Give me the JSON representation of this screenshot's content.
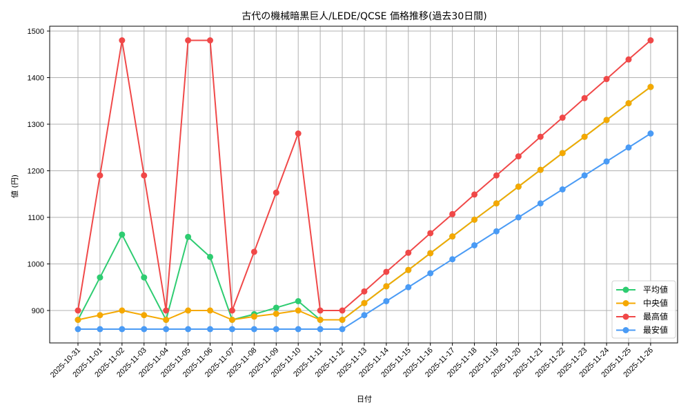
{
  "chart_data": {
    "type": "line",
    "title": "古代の機械暗黒巨人/LEDE/QCSE 価格推移(過去30日間)",
    "xlabel": "日付",
    "ylabel": "値 (円)",
    "ylim": [
      830,
      1510
    ],
    "yticks": [
      900,
      1000,
      1100,
      1200,
      1300,
      1400,
      1500
    ],
    "grid": true,
    "legend_position": "lower right",
    "x": [
      "2025-10-31",
      "2025-11-01",
      "2025-11-02",
      "2025-11-03",
      "2025-11-04",
      "2025-11-05",
      "2025-11-06",
      "2025-11-07",
      "2025-11-08",
      "2025-11-09",
      "2025-11-10",
      "2025-11-11",
      "2025-11-12",
      "2025-11-13",
      "2025-11-14",
      "2025-11-15",
      "2025-11-16",
      "2025-11-17",
      "2025-11-18",
      "2025-11-19",
      "2025-11-20",
      "2025-11-21",
      "2025-11-22",
      "2025-11-23",
      "2025-11-24",
      "2025-11-25",
      "2025-11-26"
    ],
    "series": [
      {
        "name": "平均値",
        "color": "#2ecc71",
        "values": [
          880,
          971,
          1063,
          971,
          880,
          1058,
          1015,
          880,
          892,
          906,
          920,
          880,
          880,
          916,
          952,
          987,
          1023,
          1059,
          1095,
          1130,
          1166,
          1202,
          1238,
          1273,
          1309,
          1345,
          1380
        ]
      },
      {
        "name": "中央値",
        "color": "#f5a800",
        "values": [
          880,
          890,
          900,
          890,
          880,
          900,
          900,
          880,
          887,
          893,
          900,
          880,
          880,
          916,
          952,
          987,
          1023,
          1059,
          1095,
          1130,
          1166,
          1202,
          1238,
          1273,
          1309,
          1345,
          1380
        ]
      },
      {
        "name": "最高値",
        "color": "#f04848",
        "values": [
          900,
          1190,
          1480,
          1190,
          900,
          1480,
          1480,
          900,
          1026,
          1153,
          1280,
          900,
          900,
          941,
          983,
          1024,
          1066,
          1107,
          1149,
          1190,
          1231,
          1273,
          1314,
          1356,
          1397,
          1439,
          1480
        ]
      },
      {
        "name": "最安値",
        "color": "#4a9bf5",
        "values": [
          860,
          860,
          860,
          860,
          860,
          860,
          860,
          860,
          860,
          860,
          860,
          860,
          860,
          890,
          920,
          950,
          980,
          1010,
          1040,
          1070,
          1100,
          1130,
          1160,
          1190,
          1220,
          1250,
          1280
        ]
      }
    ]
  }
}
